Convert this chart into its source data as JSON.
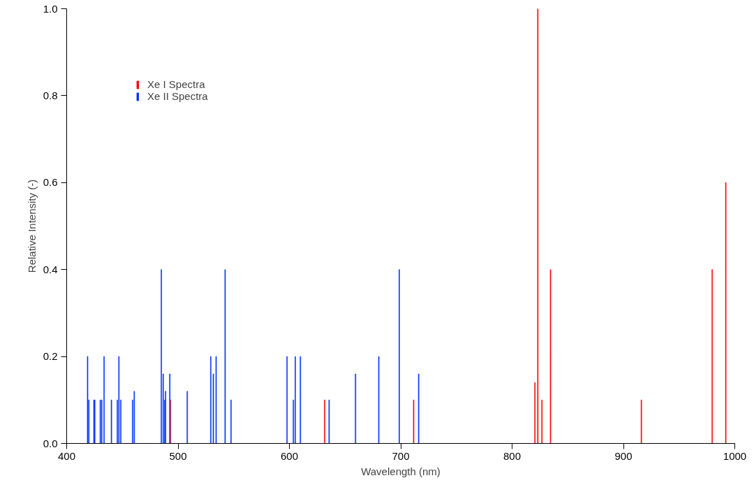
{
  "chart_data": {
    "type": "bar",
    "xlabel": "Wavelength (nm)",
    "ylabel": "Relative Intensity (-)",
    "xlim": [
      400,
      1000
    ],
    "xticks": [
      400,
      500,
      600,
      700,
      800,
      900,
      1000
    ],
    "ylim": [
      0,
      1
    ],
    "yticks": [
      {
        "value": 0,
        "label": "0.0"
      },
      {
        "value": 0.2,
        "label": "0.2"
      },
      {
        "value": 0.4,
        "label": "0.4"
      },
      {
        "value": 0.6,
        "label": "0.6"
      },
      {
        "value": 0.8,
        "label": "0.8"
      },
      {
        "value": 1,
        "label": "1.0"
      }
    ],
    "grid": false,
    "legend": "top left",
    "series": [
      {
        "name": "Xe I Spectra",
        "color": "#ff0000",
        "x": [
          493.2,
          631.7,
          711.6,
          820.5,
          823.1,
          826.8,
          834.5,
          916.1,
          979.7,
          991.9
        ],
        "values": [
          0.1,
          0.1,
          0.1,
          0.14,
          1.0,
          0.1,
          0.4,
          0.1,
          0.4,
          0.6
        ]
      },
      {
        "name": "Xe II Spectra",
        "color": "#0033ff",
        "x": [
          418.8,
          419.9,
          424.5,
          425.2,
          430.2,
          431.5,
          433.6,
          440.2,
          445.5,
          446.9,
          448.6,
          459.2,
          460.7,
          485.0,
          486.7,
          488.0,
          488.8,
          492.6,
          508.3,
          529.4,
          531.7,
          534.2,
          542.3,
          547.6,
          597.9,
          603.6,
          605.3,
          609.9,
          635.7,
          659.4,
          680.3,
          698.7,
          716.1
        ],
        "values": [
          0.2,
          0.1,
          0.1,
          0.1,
          0.1,
          0.1,
          0.2,
          0.1,
          0.1,
          0.2,
          0.1,
          0.1,
          0.12,
          0.4,
          0.16,
          0.1,
          0.12,
          0.16,
          0.12,
          0.2,
          0.16,
          0.2,
          0.4,
          0.1,
          0.2,
          0.1,
          0.2,
          0.2,
          0.1,
          0.16,
          0.2,
          0.4,
          0.16
        ]
      }
    ]
  }
}
